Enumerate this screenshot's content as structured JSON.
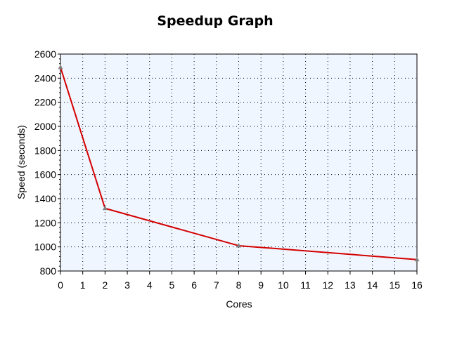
{
  "chart_data": {
    "type": "line",
    "title": "Speedup Graph",
    "xlabel": "Cores",
    "ylabel": "Speed (seconds)",
    "xlim": [
      0,
      16
    ],
    "ylim": [
      800,
      2600
    ],
    "x_ticks": [
      "0",
      "1",
      "2",
      "3",
      "4",
      "5",
      "6",
      "7",
      "8",
      "9",
      "10",
      "11",
      "12",
      "13",
      "14",
      "15",
      "16"
    ],
    "y_ticks": [
      "800",
      "1000",
      "1200",
      "1400",
      "1600",
      "1800",
      "2000",
      "2200",
      "2400",
      "2600"
    ],
    "grid": true,
    "series": [
      {
        "x": [
          0,
          2,
          8,
          16
        ],
        "y": [
          2490,
          1320,
          1010,
          895
        ],
        "color": "#d40000",
        "marker": "triangle",
        "marker_color": "#808080"
      }
    ],
    "colors": {
      "plot_background": "#f0f6ff",
      "grid": "#000000",
      "line": "#d40000"
    }
  }
}
